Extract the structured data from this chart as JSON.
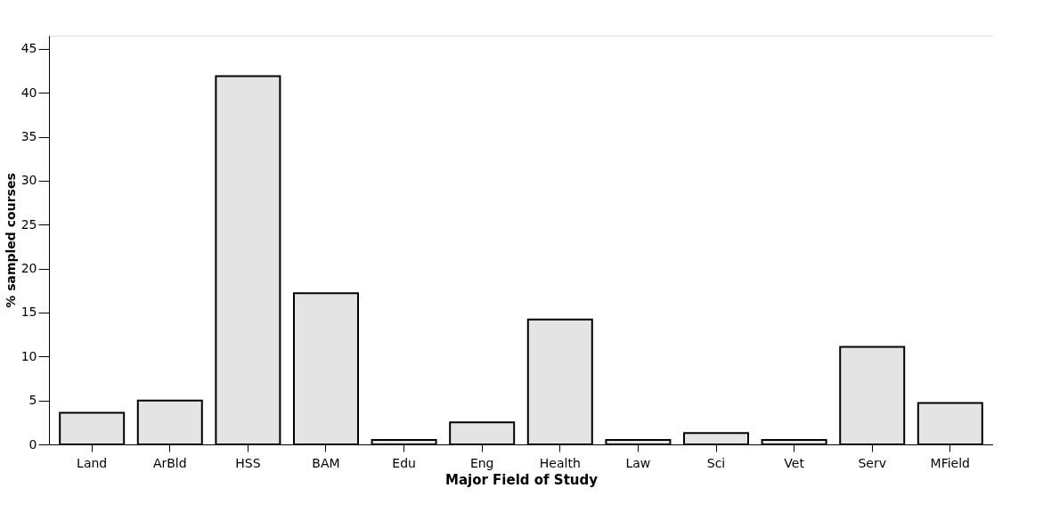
{
  "chart_data": {
    "type": "bar",
    "xlabel": "Major Field of Study",
    "ylabel": "% sampled courses",
    "categories": [
      "Land",
      "ArBld",
      "HSS",
      "BAM",
      "Edu",
      "Eng",
      "Health",
      "Law",
      "Sci",
      "Vet",
      "Serv",
      "MField"
    ],
    "values": [
      3.6,
      5.0,
      41.9,
      17.2,
      0.5,
      2.5,
      14.2,
      0.5,
      1.3,
      0.5,
      11.1,
      4.7
    ],
    "color": "#e4e4e4",
    "ylim": [
      0,
      46.5
    ],
    "yticks": [
      0,
      5,
      10,
      15,
      20,
      25,
      30,
      35,
      40,
      45
    ],
    "grid": false
  }
}
